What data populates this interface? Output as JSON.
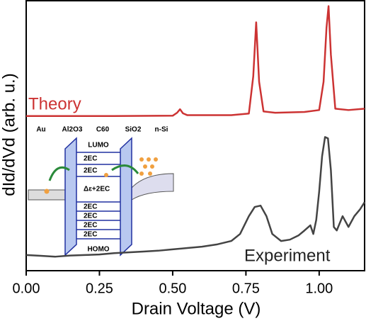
{
  "chart_data": {
    "type": "line",
    "xlabel": "Drain Voltage (V)",
    "ylabel": "dId/dVd (arb. u.)",
    "xlim": [
      0,
      1.155
    ],
    "ylim": [
      0,
      100
    ],
    "xticks": [
      {
        "value": 0,
        "label": "0.00"
      },
      {
        "value": 0.25,
        "label": "0.25"
      },
      {
        "value": 0.5,
        "label": "0.50"
      },
      {
        "value": 0.75,
        "label": "0.75"
      },
      {
        "value": 1,
        "label": "1.00"
      }
    ],
    "series": [
      {
        "name": "Theory",
        "color": "#cc3333",
        "x": [
          0,
          0.3,
          0.5,
          0.515,
          0.525,
          0.535,
          0.55,
          0.7,
          0.76,
          0.775,
          0.785,
          0.795,
          0.81,
          0.85,
          0.95,
          1.0,
          1.015,
          1.025,
          1.032,
          1.04,
          1.055,
          1.1,
          1.155
        ],
        "values": [
          57.3,
          57.3,
          57.4,
          58.5,
          59.8,
          58.3,
          57.6,
          57.6,
          58.2,
          72,
          92,
          70,
          59,
          58.5,
          58.8,
          59.5,
          70,
          90,
          98,
          80,
          60,
          59.5,
          60
        ]
      },
      {
        "name": "Experiment",
        "color": "#444444",
        "x": [
          0,
          0.05,
          0.1,
          0.15,
          0.2,
          0.25,
          0.3,
          0.35,
          0.4,
          0.45,
          0.5,
          0.55,
          0.6,
          0.65,
          0.7,
          0.73,
          0.76,
          0.78,
          0.8,
          0.82,
          0.84,
          0.87,
          0.9,
          0.93,
          0.95,
          0.97,
          0.98,
          0.99,
          1.0,
          1.01,
          1.02,
          1.03,
          1.04,
          1.05,
          1.06,
          1.08,
          1.1,
          1.12,
          1.14,
          1.155
        ],
        "values": [
          5.8,
          5.5,
          5.2,
          5.6,
          5.8,
          6.0,
          6.5,
          6.8,
          7.1,
          7.4,
          7.9,
          8.4,
          8.9,
          9.7,
          11,
          13.6,
          20.2,
          23.6,
          24.1,
          20.2,
          13.6,
          11,
          11.5,
          13.1,
          14.9,
          16.8,
          13.6,
          18.8,
          29.3,
          42.4,
          49.5,
          49,
          37.2,
          16.2,
          14.9,
          20.2,
          16.2,
          20.2,
          22.8,
          25.4
        ]
      }
    ]
  },
  "inset": {
    "layers": [
      "Au",
      "Al2O3",
      "C60",
      "SiO2",
      "n-Si"
    ],
    "lumo": "LUMO",
    "homo": "HOMO",
    "level_spacing": "2EC",
    "gap": "Δε+2EC"
  }
}
